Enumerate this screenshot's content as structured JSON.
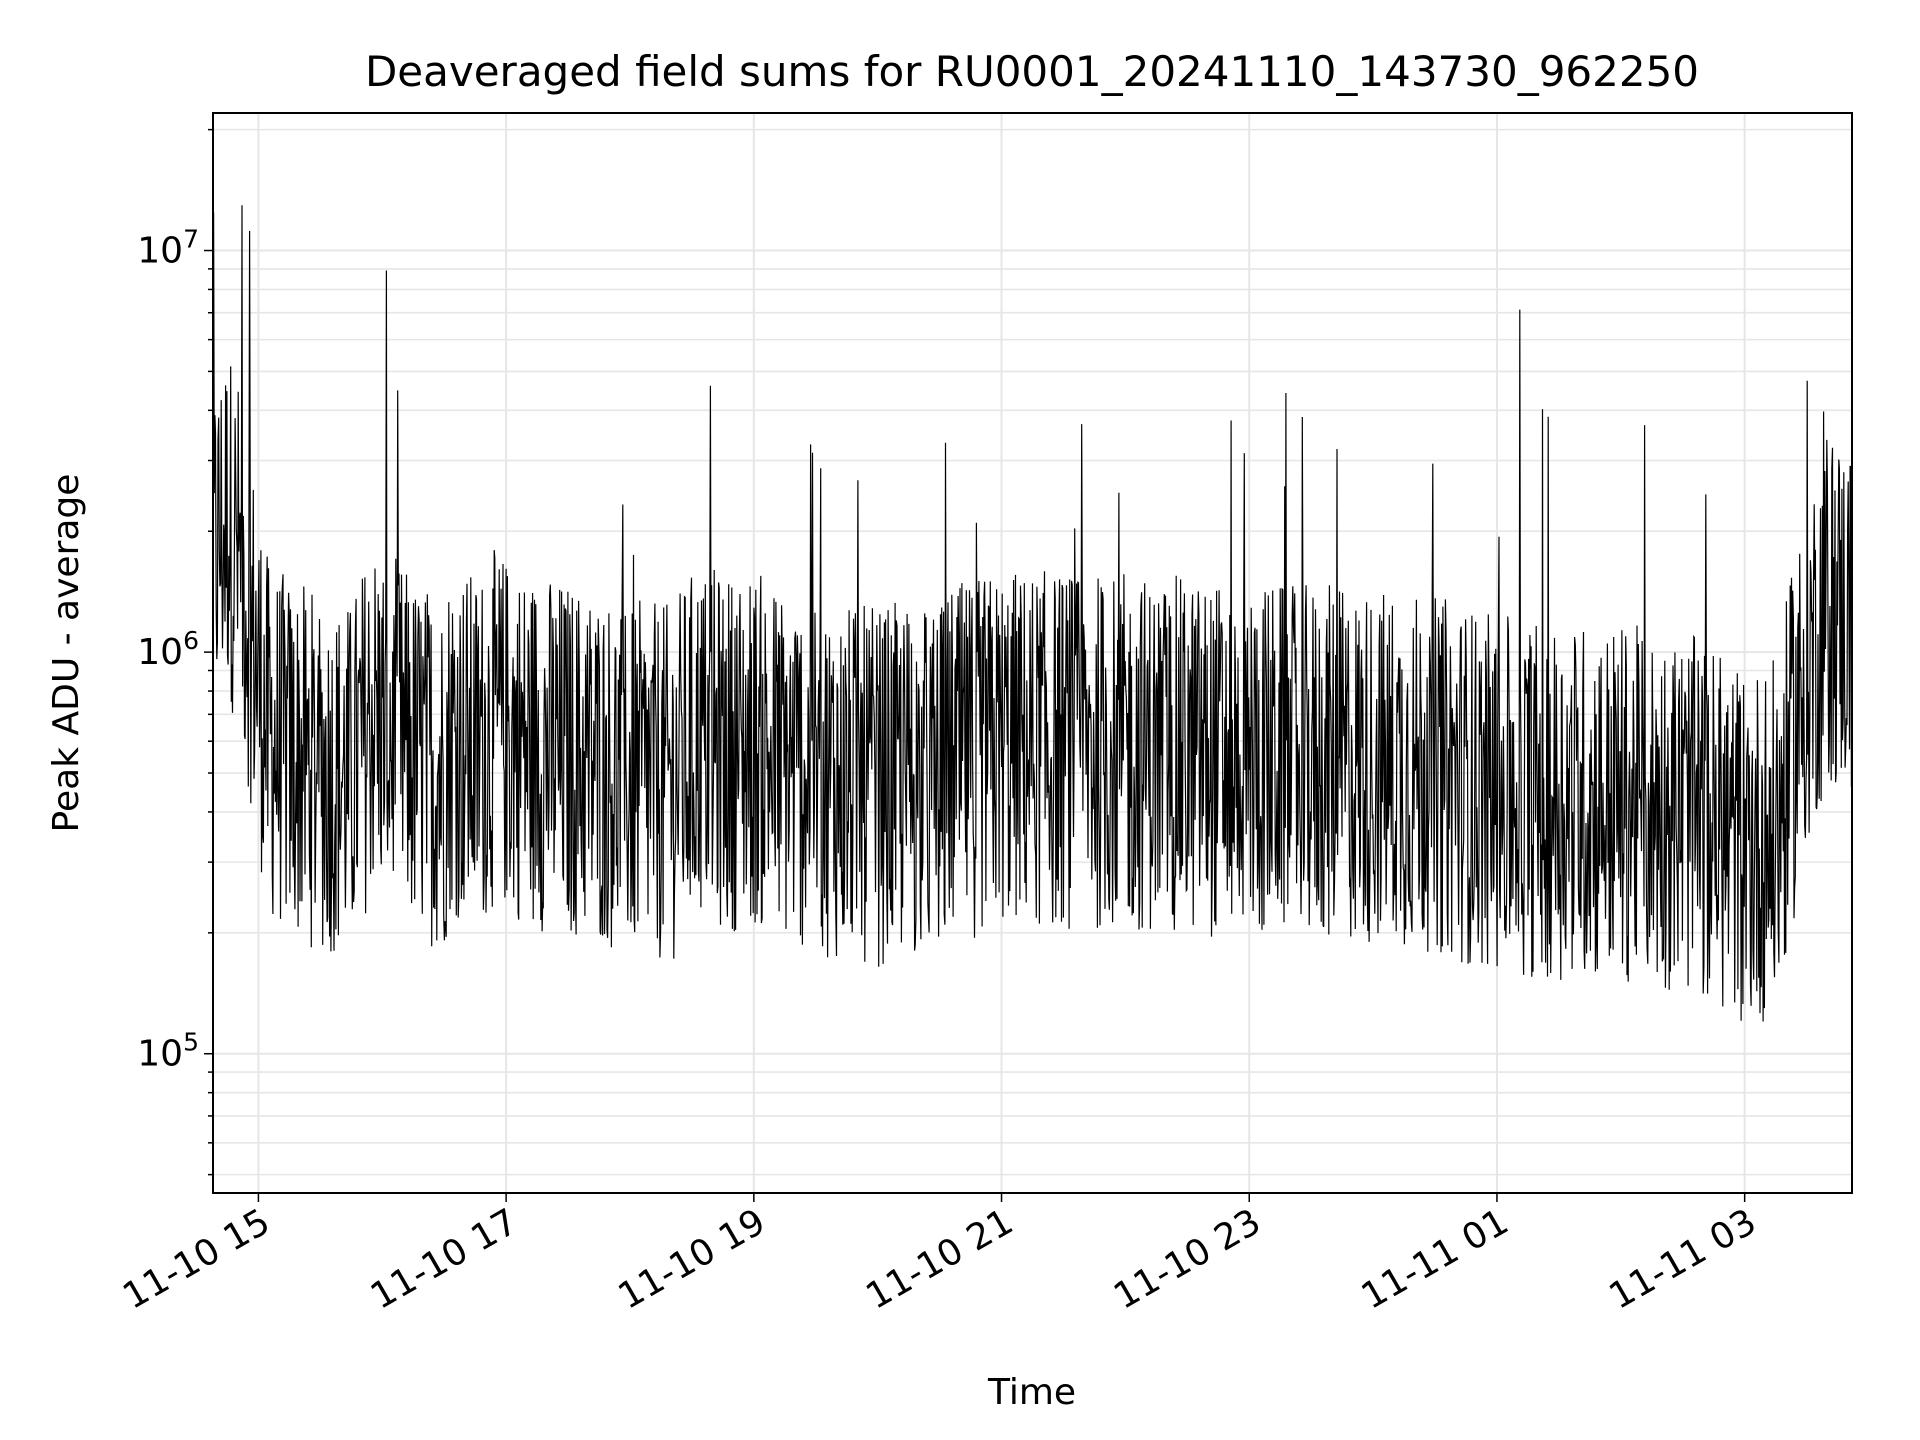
{
  "chart_data": {
    "type": "line",
    "title": "Deaveraged field sums for RU0001_20241110_143730_962250",
    "xlabel": "Time",
    "ylabel": "Peak ADU - average",
    "y_scale": "log",
    "ylim": [
      45000,
      22000000
    ],
    "xlim": [
      "2024-11-10 14:38",
      "2024-11-11 03:52"
    ],
    "grid": true,
    "line_color": "#000000",
    "grid_color": "#e6e6e6",
    "x_ticks": [
      {
        "value": "2024-11-10 15:00",
        "label": "11-10 15"
      },
      {
        "value": "2024-11-10 17:00",
        "label": "11-10 17"
      },
      {
        "value": "2024-11-10 19:00",
        "label": "11-10 19"
      },
      {
        "value": "2024-11-10 21:00",
        "label": "11-10 21"
      },
      {
        "value": "2024-11-10 23:00",
        "label": "11-10 23"
      },
      {
        "value": "2024-11-11 01:00",
        "label": "11-11 01"
      },
      {
        "value": "2024-11-11 03:00",
        "label": "11-11 03"
      }
    ],
    "y_ticks": [
      {
        "value": 100000,
        "base": "10",
        "exp": "5"
      },
      {
        "value": 1000000,
        "base": "10",
        "exp": "6"
      },
      {
        "value": 10000000,
        "base": "10",
        "exp": "7"
      }
    ],
    "series": [
      {
        "x": [
          "2024-11-10 14:38",
          "2024-11-10 14:45",
          "2024-11-10 14:52",
          "2024-11-10 14:56",
          "2024-11-10 15:05",
          "2024-11-10 15:15",
          "2024-11-10 15:30",
          "2024-11-10 15:45",
          "2024-11-10 15:55",
          "2024-11-10 16:03",
          "2024-11-10 16:15",
          "2024-11-10 16:30",
          "2024-11-10 16:33",
          "2024-11-10 16:45",
          "2024-11-10 16:55",
          "2024-11-10 17:10",
          "2024-11-10 17:30",
          "2024-11-10 17:45",
          "2024-11-10 18:00",
          "2024-11-10 18:20",
          "2024-11-10 18:25",
          "2024-11-10 18:33",
          "2024-11-10 18:45",
          "2024-11-10 19:00",
          "2024-11-10 19:15",
          "2024-11-10 19:30",
          "2024-11-10 19:45",
          "2024-11-10 20:00",
          "2024-11-10 20:15",
          "2024-11-10 20:30",
          "2024-11-10 20:35",
          "2024-11-10 20:45",
          "2024-11-10 21:00",
          "2024-11-10 21:30",
          "2024-11-10 22:00",
          "2024-11-10 22:15",
          "2024-11-10 22:30",
          "2024-11-10 23:00",
          "2024-11-10 23:30",
          "2024-11-11 00:00",
          "2024-11-11 00:30",
          "2024-11-11 01:00",
          "2024-11-11 01:30",
          "2024-11-11 02:00",
          "2024-11-11 02:30",
          "2024-11-11 02:40",
          "2024-11-11 03:00",
          "2024-11-11 03:15",
          "2024-11-11 03:30",
          "2024-11-11 03:40",
          "2024-11-11 03:52"
        ],
        "y": [
          1700000,
          2200000,
          1600000,
          1200000,
          600000,
          550000,
          500000,
          480000,
          700000,
          650000,
          550000,
          500000,
          620000,
          560000,
          650000,
          580000,
          540000,
          520000,
          480000,
          470000,
          520000,
          600000,
          560000,
          580000,
          520000,
          500000,
          470000,
          460000,
          480000,
          470000,
          520000,
          540000,
          580000,
          570000,
          560000,
          560000,
          550000,
          540000,
          530000,
          520000,
          500000,
          440000,
          430000,
          420000,
          400000,
          380000,
          330000,
          340000,
          900000,
          1300000,
          1200000
        ]
      }
    ]
  }
}
